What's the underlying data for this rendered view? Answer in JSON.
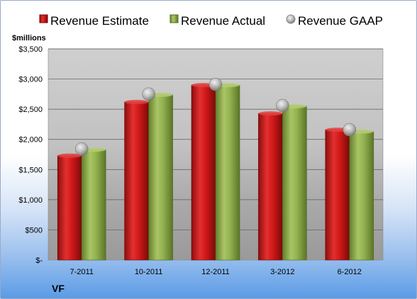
{
  "chart_data": {
    "type": "bar",
    "unit_label": "$millions",
    "ticker": "VF",
    "categories": [
      "7-2011",
      "10-2011",
      "12-2011",
      "3-2012",
      "6-2012"
    ],
    "series": [
      {
        "name": "Revenue Estimate",
        "kind": "bar",
        "color": "#cc1111",
        "values": [
          1730,
          2620,
          2900,
          2430,
          2160
        ]
      },
      {
        "name": "Revenue Actual",
        "kind": "bar",
        "color": "#8fb04a",
        "values": [
          1830,
          2740,
          2900,
          2550,
          2130
        ]
      },
      {
        "name": "Revenue GAAP",
        "kind": "marker",
        "color": "#b8b8b8",
        "values": [
          1840,
          2750,
          2910,
          2560,
          2160
        ]
      }
    ],
    "y_ticks": [
      {
        "value": 0,
        "label": "$-"
      },
      {
        "value": 500,
        "label": "$500"
      },
      {
        "value": 1000,
        "label": "$1,000"
      },
      {
        "value": 1500,
        "label": "$1,500"
      },
      {
        "value": 2000,
        "label": "$2,000"
      },
      {
        "value": 2500,
        "label": "$2,500"
      },
      {
        "value": 3000,
        "label": "$3,000"
      },
      {
        "value": 3500,
        "label": "$3,500"
      }
    ],
    "ylim": [
      0,
      3500
    ],
    "legend_position": "top",
    "grid": true
  }
}
